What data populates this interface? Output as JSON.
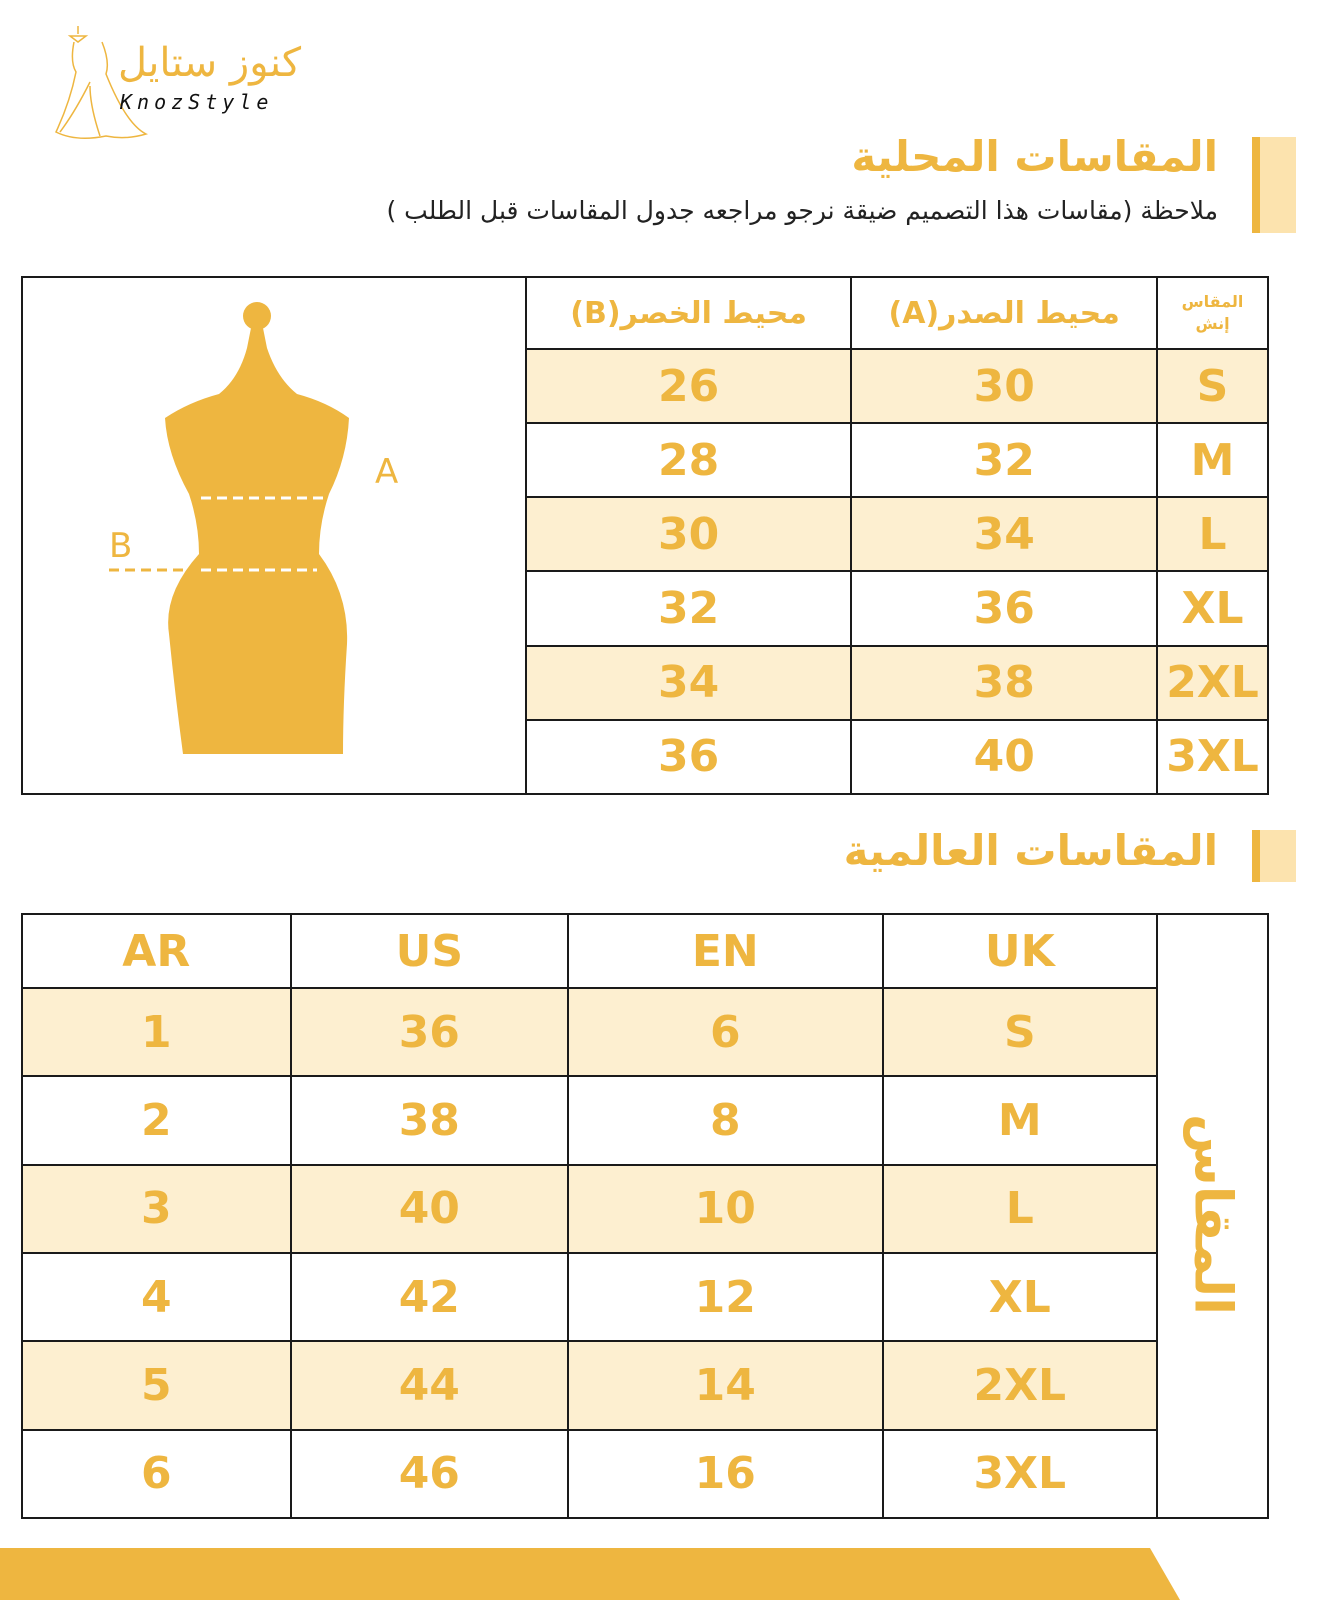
{
  "brand": {
    "name_ar": "كنوز ستايل",
    "name_en": "KnozStyle"
  },
  "colors": {
    "accent": "#EEB640",
    "row_shade": "#FDEFD0",
    "border": "#1a1a1a"
  },
  "local": {
    "title": "المقاسات المحلية",
    "note": "ملاحظة (مقاسات هذا التصميم ضيقة نرجو مراجعه جدول المقاسات قبل الطلب )",
    "headers": {
      "size_line1": "المقاس",
      "size_line2": "إنش",
      "chest": "محيط الصدر(A)",
      "waist": "محيط الخصر(B)"
    },
    "diagram_labels": {
      "a": "A",
      "b": "B"
    },
    "rows": [
      {
        "size": "S",
        "chest": "30",
        "waist": "26"
      },
      {
        "size": "M",
        "chest": "32",
        "waist": "28"
      },
      {
        "size": "L",
        "chest": "34",
        "waist": "30"
      },
      {
        "size": "XL",
        "chest": "36",
        "waist": "32"
      },
      {
        "size": "2XL",
        "chest": "38",
        "waist": "34"
      },
      {
        "size": "3XL",
        "chest": "40",
        "waist": "36"
      }
    ]
  },
  "international": {
    "title": "المقاسات العالمية",
    "side_label": "المقاس",
    "headers": {
      "ar": "AR",
      "us": "US",
      "en": "EN",
      "uk": "UK"
    },
    "rows": [
      {
        "ar": "1",
        "us": "36",
        "en": "6",
        "uk": "S"
      },
      {
        "ar": "2",
        "us": "38",
        "en": "8",
        "uk": "M"
      },
      {
        "ar": "3",
        "us": "40",
        "en": "10",
        "uk": "L"
      },
      {
        "ar": "4",
        "us": "42",
        "en": "12",
        "uk": "XL"
      },
      {
        "ar": "5",
        "us": "44",
        "en": "14",
        "uk": "2XL"
      },
      {
        "ar": "6",
        "us": "46",
        "en": "16",
        "uk": "3XL"
      }
    ]
  }
}
